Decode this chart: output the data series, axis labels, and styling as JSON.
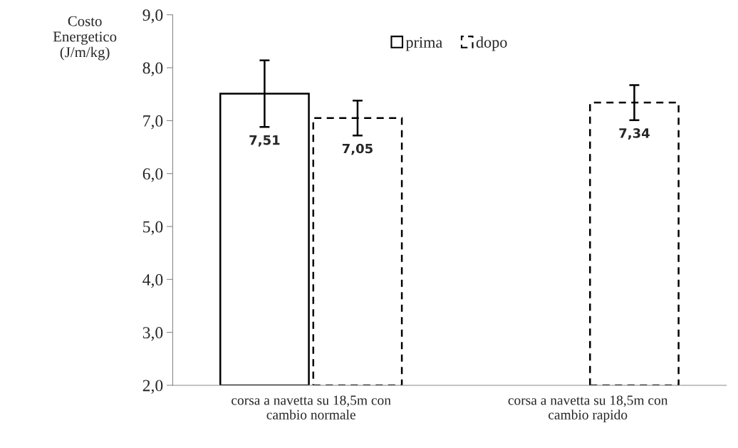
{
  "chart_data": {
    "type": "bar",
    "ylabel": "Costo\nEnergetico\n(J/m/kg)",
    "categories": [
      "corsa a navetta su 18,5m con\ncambio normale",
      "corsa a navetta su 18,5m con\ncambio rapido"
    ],
    "series": [
      {
        "name": "prima",
        "color": "#000000",
        "line_style": "solid",
        "values": [
          7.51,
          null
        ],
        "errors": [
          0.63,
          null
        ],
        "value_labels": [
          "7,51",
          null
        ]
      },
      {
        "name": "dopo",
        "color": "#000000",
        "line_style": "dashed",
        "values": [
          7.05,
          7.34
        ],
        "errors": [
          0.33,
          0.33
        ],
        "value_labels": [
          "7,05",
          "7,34"
        ]
      }
    ],
    "ylim": [
      2,
      9
    ],
    "yticks": [
      {
        "value": 2,
        "label": "2,0"
      },
      {
        "value": 3,
        "label": "3,0"
      },
      {
        "value": 4,
        "label": "4,0"
      },
      {
        "value": 5,
        "label": "5,0"
      },
      {
        "value": 6,
        "label": "6,0"
      },
      {
        "value": 7,
        "label": "7,0"
      },
      {
        "value": 8,
        "label": "8,0"
      },
      {
        "value": 9,
        "label": "9,0"
      }
    ],
    "grid": false,
    "legend": "top"
  }
}
